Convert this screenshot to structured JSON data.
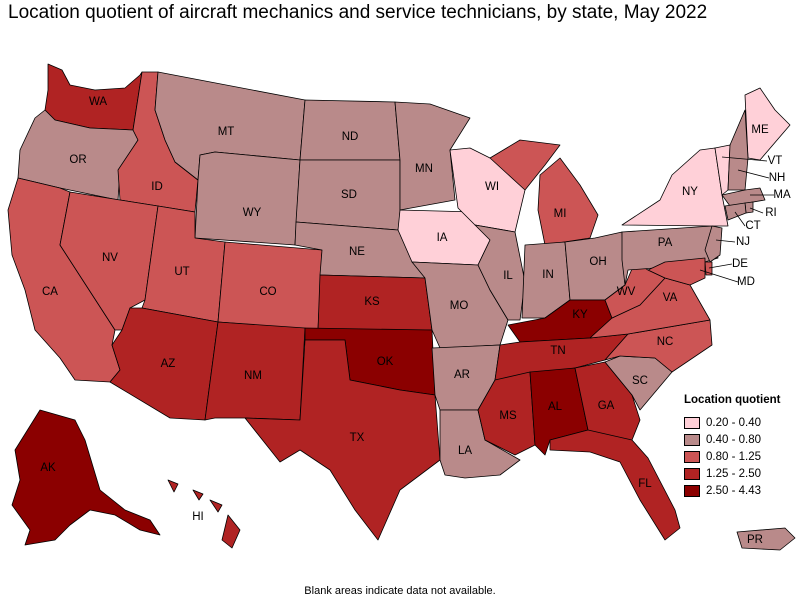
{
  "title": "Location quotient of aircraft mechanics and service technicians, by state, May 2022",
  "footnote": "Blank areas indicate data not available.",
  "colors": {
    "c1": "#ffd0d8",
    "c2": "#b98a8a",
    "c3": "#cc5555",
    "c4": "#b02323",
    "c5": "#8b0000",
    "border": "#000000"
  },
  "legend": {
    "title": "Location quotient",
    "items": [
      {
        "label": "0.20 - 0.40",
        "class": "c1"
      },
      {
        "label": "0.40 - 0.80",
        "class": "c2"
      },
      {
        "label": "0.80 - 1.25",
        "class": "c3"
      },
      {
        "label": "1.25 - 2.50",
        "class": "c4"
      },
      {
        "label": "2.50 - 4.43",
        "class": "c5"
      }
    ]
  },
  "states": [
    {
      "abbr": "WA",
      "class": "c4"
    },
    {
      "abbr": "OR",
      "class": "c2"
    },
    {
      "abbr": "CA",
      "class": "c3"
    },
    {
      "abbr": "ID",
      "class": "c3"
    },
    {
      "abbr": "NV",
      "class": "c3"
    },
    {
      "abbr": "MT",
      "class": "c2"
    },
    {
      "abbr": "WY",
      "class": "c2"
    },
    {
      "abbr": "UT",
      "class": "c3"
    },
    {
      "abbr": "AZ",
      "class": "c4"
    },
    {
      "abbr": "CO",
      "class": "c3"
    },
    {
      "abbr": "NM",
      "class": "c4"
    },
    {
      "abbr": "ND",
      "class": "c2"
    },
    {
      "abbr": "SD",
      "class": "c2"
    },
    {
      "abbr": "NE",
      "class": "c2"
    },
    {
      "abbr": "KS",
      "class": "c4"
    },
    {
      "abbr": "OK",
      "class": "c5"
    },
    {
      "abbr": "TX",
      "class": "c4"
    },
    {
      "abbr": "MN",
      "class": "c2"
    },
    {
      "abbr": "IA",
      "class": "c1"
    },
    {
      "abbr": "MO",
      "class": "c2"
    },
    {
      "abbr": "AR",
      "class": "c2"
    },
    {
      "abbr": "LA",
      "class": "c2"
    },
    {
      "abbr": "WI",
      "class": "c1"
    },
    {
      "abbr": "IL",
      "class": "c2"
    },
    {
      "abbr": "MI",
      "class": "c3"
    },
    {
      "abbr": "IN",
      "class": "c2"
    },
    {
      "abbr": "OH",
      "class": "c2"
    },
    {
      "abbr": "KY",
      "class": "c5"
    },
    {
      "abbr": "TN",
      "class": "c4"
    },
    {
      "abbr": "MS",
      "class": "c4"
    },
    {
      "abbr": "AL",
      "class": "c5"
    },
    {
      "abbr": "GA",
      "class": "c4"
    },
    {
      "abbr": "FL",
      "class": "c4"
    },
    {
      "abbr": "SC",
      "class": "c2"
    },
    {
      "abbr": "NC",
      "class": "c3"
    },
    {
      "abbr": "VA",
      "class": "c3"
    },
    {
      "abbr": "WV",
      "class": "c3"
    },
    {
      "abbr": "PA",
      "class": "c2"
    },
    {
      "abbr": "NY",
      "class": "c1"
    },
    {
      "abbr": "ME",
      "class": "c1"
    },
    {
      "abbr": "VT",
      "class": "c1"
    },
    {
      "abbr": "NH",
      "class": "c2"
    },
    {
      "abbr": "MA",
      "class": "c2"
    },
    {
      "abbr": "RI",
      "class": "c2"
    },
    {
      "abbr": "CT",
      "class": "c2"
    },
    {
      "abbr": "NJ",
      "class": "c2"
    },
    {
      "abbr": "DE",
      "class": "c3"
    },
    {
      "abbr": "MD",
      "class": "c3"
    },
    {
      "abbr": "AK",
      "class": "c5"
    },
    {
      "abbr": "HI",
      "class": "c4"
    },
    {
      "abbr": "PR",
      "class": "c2"
    }
  ]
}
